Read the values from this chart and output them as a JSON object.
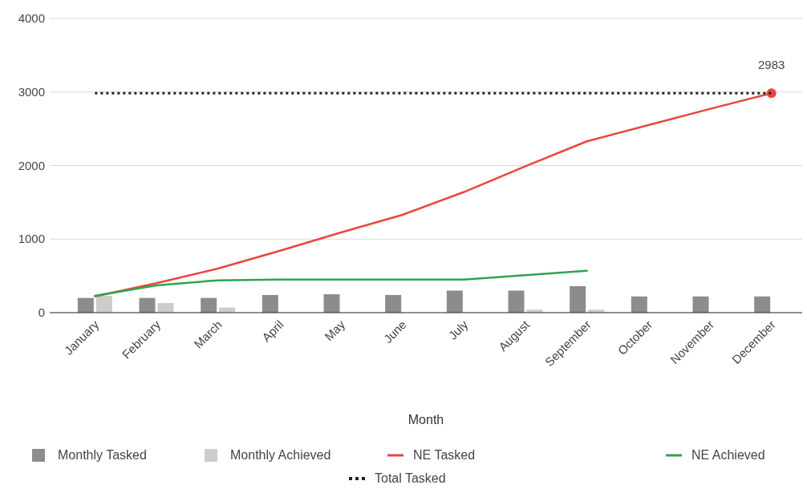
{
  "chart_data": {
    "type": "bar",
    "xlabel": "Month",
    "categories": [
      "January",
      "February",
      "March",
      "April",
      "May",
      "June",
      "July",
      "August",
      "September",
      "October",
      "November",
      "December"
    ],
    "series": [
      {
        "name": "Monthly Tasked",
        "color": "#8c8c8c",
        "values": [
          200,
          200,
          200,
          240,
          250,
          240,
          300,
          300,
          360,
          220,
          220,
          220
        ]
      },
      {
        "name": "Monthly Achieved",
        "color": "#cccccc",
        "values": [
          230,
          130,
          70,
          0,
          0,
          0,
          0,
          40,
          40,
          null,
          null,
          null
        ]
      },
      {
        "name": "NE Tasked",
        "type": "line",
        "color": "#e8463f",
        "values": [
          220,
          400,
          600,
          840,
          1090,
          1330,
          1640,
          1990,
          2330,
          2550,
          2770,
          2983
        ],
        "value_labels": [
          null,
          null,
          null,
          null,
          null,
          null,
          null,
          null,
          null,
          null,
          null,
          "2983"
        ]
      },
      {
        "name": "NE Achieved",
        "type": "line",
        "color": "#2ea44f",
        "values": [
          230,
          370,
          440,
          450,
          450,
          450,
          450,
          510,
          570,
          null,
          null,
          null
        ]
      },
      {
        "name": "Total Tasked",
        "type": "line",
        "color": "#222222",
        "line_style": "dotted",
        "values": [
          2983,
          2983,
          2983,
          2983,
          2983,
          2983,
          2983,
          2983,
          2983,
          2983,
          2983,
          2983
        ]
      }
    ],
    "ylim": [
      0,
      4000
    ],
    "yticks": [
      0,
      1000,
      2000,
      3000,
      4000
    ],
    "grid": "y",
    "legend": "bottom"
  }
}
